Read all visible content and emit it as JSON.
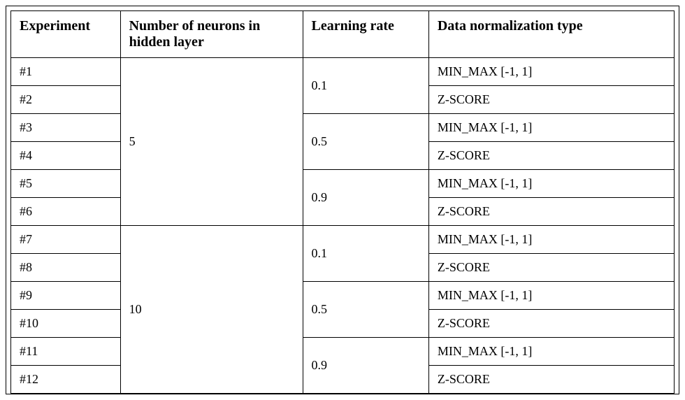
{
  "table": {
    "columns": [
      "Experiment",
      "Number of neurons in hidden layer",
      "Learning rate",
      "Data normalization type"
    ],
    "neurons_group_1": "5",
    "neurons_group_2": "10",
    "lr_1": "0.1",
    "lr_2": "0.5",
    "lr_3": "0.9",
    "lr_4": "0.1",
    "lr_5": "0.5",
    "lr_6": "0.9",
    "rows": [
      {
        "exp": "#1",
        "norm": "MIN_MAX [-1, 1]"
      },
      {
        "exp": "#2",
        "norm": "Z-SCORE"
      },
      {
        "exp": "#3",
        "norm": "MIN_MAX [-1, 1]"
      },
      {
        "exp": "#4",
        "norm": "Z-SCORE"
      },
      {
        "exp": "#5",
        "norm": "MIN_MAX [-1, 1]"
      },
      {
        "exp": "#6",
        "norm": "Z-SCORE"
      },
      {
        "exp": "#7",
        "norm": "MIN_MAX [-1, 1]"
      },
      {
        "exp": "#8",
        "norm": "Z-SCORE"
      },
      {
        "exp": "#9",
        "norm": "MIN_MAX [-1, 1]"
      },
      {
        "exp": "#10",
        "norm": "Z-SCORE"
      },
      {
        "exp": "#11",
        "norm": "MIN_MAX [-1, 1]"
      },
      {
        "exp": "#12",
        "norm": "Z-SCORE"
      }
    ],
    "styling": {
      "border_color": "#000000",
      "background_color": "#ffffff",
      "text_color": "#000000",
      "header_font_size_pt": 15,
      "body_font_size_pt": 13,
      "column_widths_pct": [
        16.5,
        27.5,
        19.0,
        37.0
      ]
    }
  }
}
